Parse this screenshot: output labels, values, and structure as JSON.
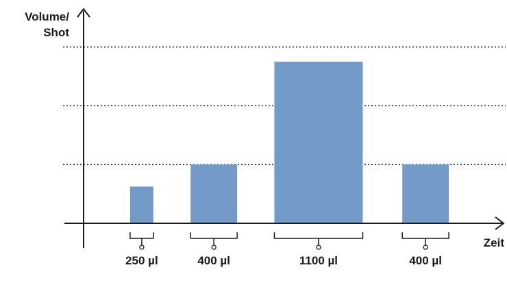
{
  "chart_data": {
    "type": "bar",
    "ylabel_lines": [
      "Volume/",
      "Shot"
    ],
    "xlabel": "Zeit",
    "bars": [
      {
        "label": "250 µl",
        "volume": 250,
        "start": 1.0,
        "end": 1.5
      },
      {
        "label": "400 µl",
        "volume": 400,
        "start": 2.3,
        "end": 3.3
      },
      {
        "label": "1100 µl",
        "volume": 1100,
        "start": 4.1,
        "end": 6.0
      },
      {
        "label": "400 µl",
        "volume": 400,
        "start": 6.85,
        "end": 7.85
      }
    ],
    "gridlines": [
      400,
      800,
      1200
    ],
    "ylim": [
      0,
      1520
    ],
    "xlim": [
      0,
      9.1
    ],
    "grid": "dotted horizontal",
    "bar_color": "#749bc8",
    "axis_color": "#1a1a1a"
  }
}
